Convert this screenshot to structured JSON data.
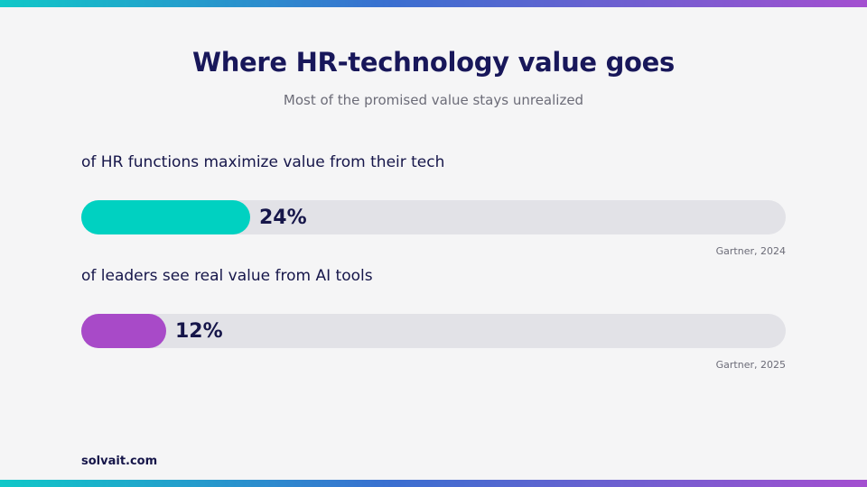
{
  "header": {
    "title": "Where HR-technology value goes",
    "subtitle": "Most of the promised value stays unrealized"
  },
  "chart_data": {
    "type": "bar",
    "orientation": "horizontal",
    "title": "Where HR-technology value goes",
    "subtitle": "Most of the promised value stays unrealized",
    "xlim": [
      0,
      100
    ],
    "grid": false,
    "categories": [
      "of HR functions maximize value from their tech",
      "of leaders see real value from AI tools"
    ],
    "values": [
      24,
      12
    ],
    "value_labels": [
      "24%",
      "12%"
    ],
    "sources": [
      "Gartner, 2024",
      "Gartner, 2025"
    ],
    "colors": [
      "#00d1c1",
      "#a84ac8"
    ]
  },
  "footer": {
    "brand": "solvait.com"
  }
}
